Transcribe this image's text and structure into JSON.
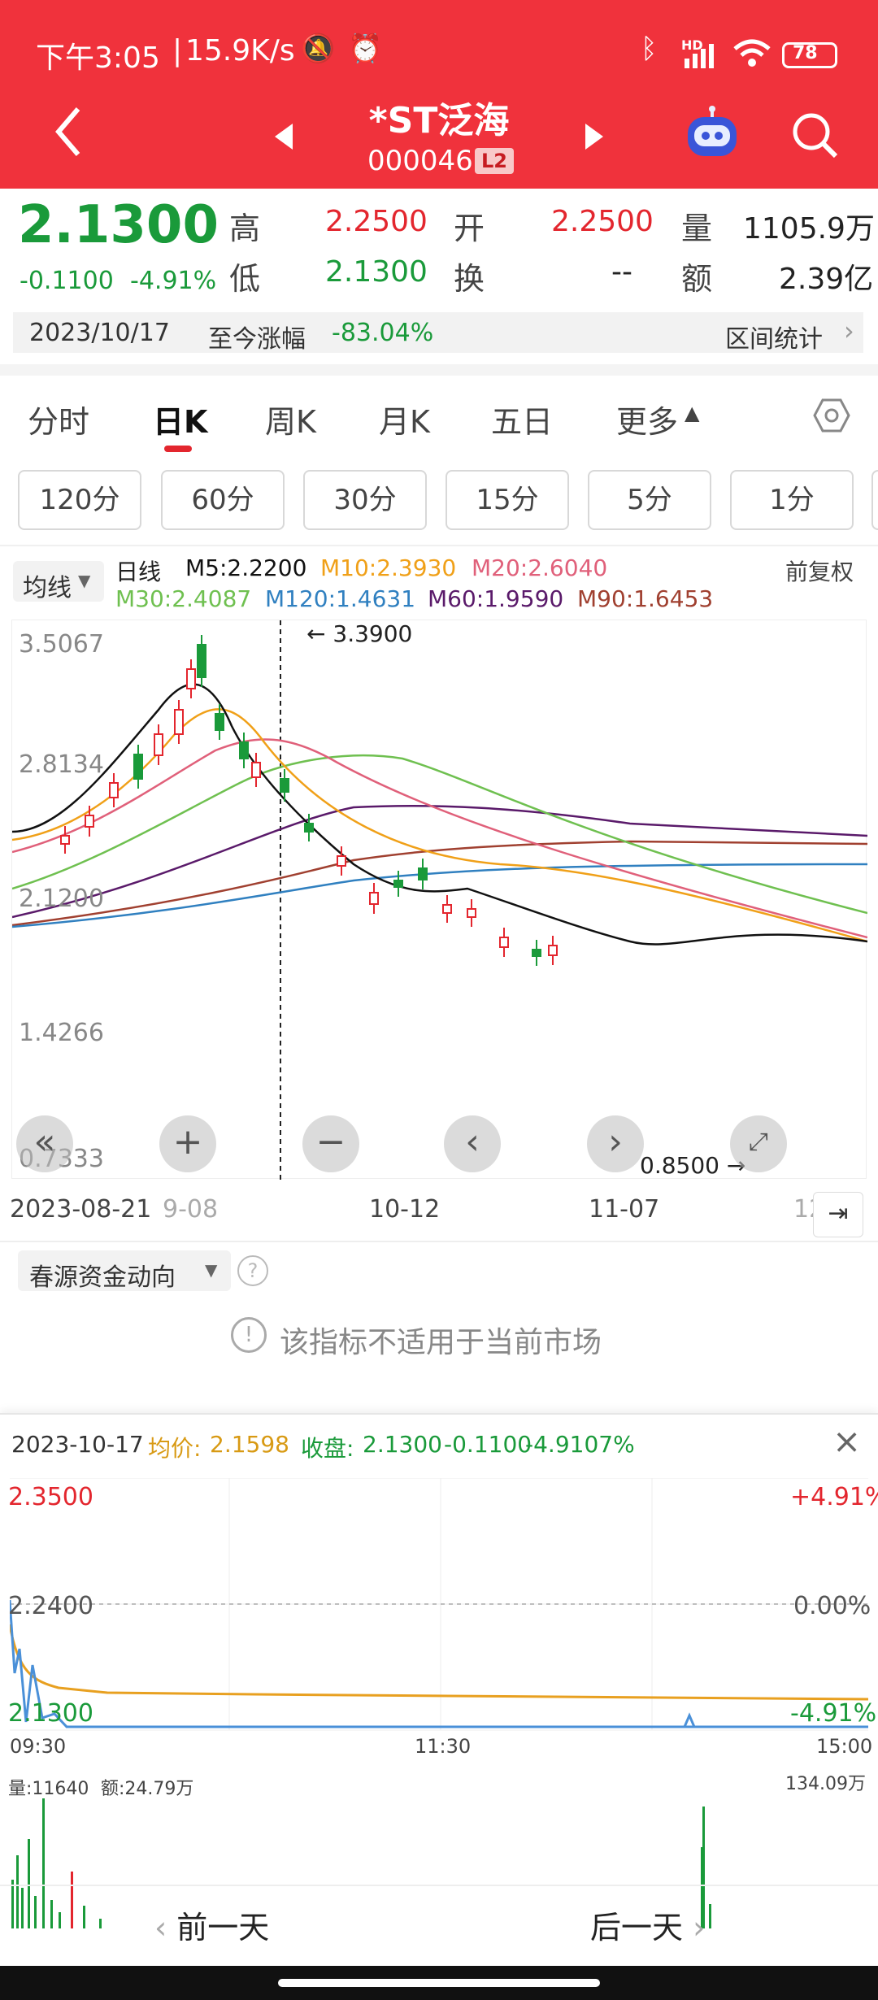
{
  "status_bar": {
    "time": "下午3:05",
    "speed": "15.9K/s",
    "battery": "78",
    "hd": "HD"
  },
  "header": {
    "stock_name": "*ST泛海",
    "stock_code": "000046",
    "level_badge": "L2"
  },
  "quote": {
    "price": "2.1300",
    "change": "-0.1100",
    "change_pct": "-4.91%",
    "high_label": "高",
    "high": "2.2500",
    "open_label": "开",
    "open": "2.2500",
    "volume_label": "量",
    "volume": "1105.9万",
    "low_label": "低",
    "low": "2.1300",
    "turnover_label": "换",
    "turnover": "--",
    "amount_label": "额",
    "amount": "2.39亿"
  },
  "range_bar": {
    "date": "2023/10/17",
    "label": "至今涨幅",
    "value": "-83.04%",
    "stats_link": "区间统计"
  },
  "period_tabs": [
    "分时",
    "日K",
    "周K",
    "月K",
    "五日",
    "更多"
  ],
  "minute_tabs": [
    "120分",
    "60分",
    "30分",
    "15分",
    "5分",
    "1分"
  ],
  "kline": {
    "ma_toggle": "均线",
    "line_type": "日线",
    "adjust": "前复权",
    "ma": [
      {
        "label": "M5:2.2200",
        "color": "#111111"
      },
      {
        "label": "M10:2.3930",
        "color": "#f0a018"
      },
      {
        "label": "M20:2.6040",
        "color": "#e0607a"
      },
      {
        "label": "M30:2.4087",
        "color": "#6fc050"
      },
      {
        "label": "M120:1.4631",
        "color": "#3080c0"
      },
      {
        "label": "M60:1.9590",
        "color": "#5a1a6a"
      },
      {
        "label": "M90:1.6453",
        "color": "#a04030"
      }
    ],
    "y_ticks": [
      "3.5067",
      "2.8134",
      "2.1200",
      "1.4266",
      "0.7333"
    ],
    "max_marker": "3.3900",
    "min_marker": "0.8500",
    "x_ticks": [
      "2023-08-21",
      "9-08",
      "10-12",
      "11-07",
      "12"
    ]
  },
  "indicator": {
    "name": "春源资金动向",
    "message": "该指标不适用于当前市场"
  },
  "intraday": {
    "date": "2023-10-17",
    "avg_label": "均价:",
    "avg": "2.1598",
    "close_label": "收盘:",
    "close": "2.1300",
    "close_change": "-0.1100",
    "close_pct": "-4.9107%",
    "y_high": "2.3500",
    "y_mid": "2.2400",
    "y_low": "2.1300",
    "pct_high": "+4.91%",
    "pct_mid": "0.00%",
    "pct_low": "-4.91%",
    "times": [
      "09:30",
      "11:30",
      "15:00"
    ],
    "vol_label": "量:11640",
    "amt_label": "额:24.79万",
    "vol_max": "134.09万"
  },
  "bottom_nav": {
    "prev": "前一天",
    "next": "后一天"
  },
  "colors": {
    "header_bg": "#f0323c",
    "up": "#e3262e",
    "down": "#1a9a3a"
  }
}
